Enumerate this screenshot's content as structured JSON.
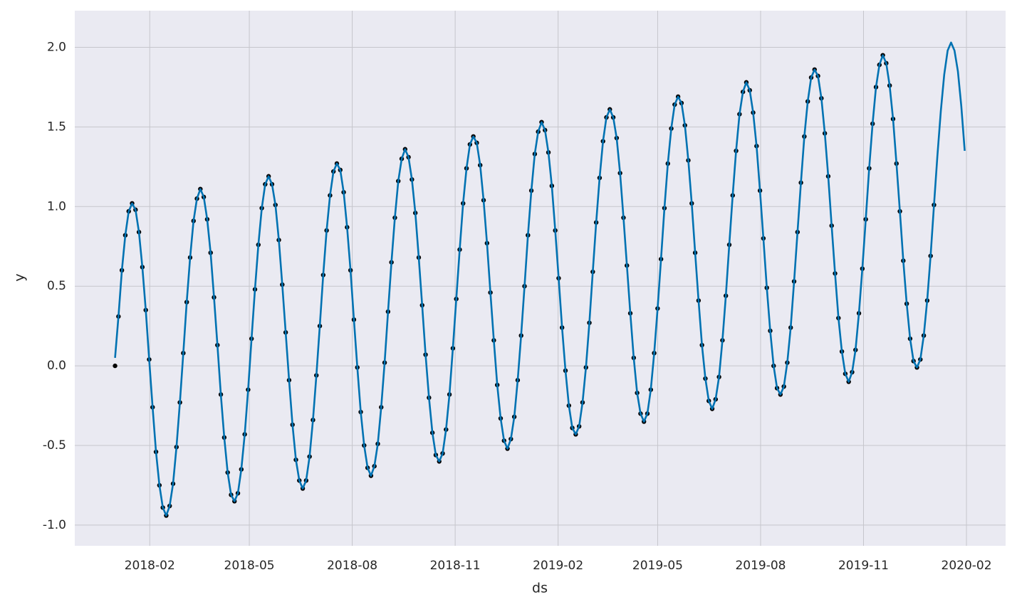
{
  "chart_data": {
    "type": "line",
    "xlabel": "ds",
    "ylabel": "y",
    "grid": true,
    "xlim": [
      -36,
      796
    ],
    "ylim": [
      -1.13,
      2.23
    ],
    "xticks": [
      {
        "value": 31,
        "label": "2018-02"
      },
      {
        "value": 120,
        "label": "2018-05"
      },
      {
        "value": 212,
        "label": "2018-08"
      },
      {
        "value": 304,
        "label": "2018-11"
      },
      {
        "value": 396,
        "label": "2019-02"
      },
      {
        "value": 485,
        "label": "2019-05"
      },
      {
        "value": 577,
        "label": "2019-08"
      },
      {
        "value": 669,
        "label": "2019-11"
      },
      {
        "value": 761,
        "label": "2020-02"
      }
    ],
    "yticks": [
      {
        "value": -1,
        "label": "-1.0"
      },
      -0.5,
      {
        "value": 0,
        "label": "0.0"
      },
      0.5,
      {
        "value": 1,
        "label": "1.0"
      },
      1.5,
      {
        "value": 2,
        "label": "2.0"
      }
    ],
    "x": [
      0,
      3.05,
      6.1,
      9.15,
      12.2,
      15.25,
      18.3,
      21.35,
      24.4,
      27.45,
      30.5,
      33.55,
      36.6,
      39.65,
      42.7,
      45.75,
      48.8,
      51.85,
      54.9,
      57.95,
      61,
      64.05,
      67.1,
      70.15,
      73.2,
      76.25,
      79.3,
      82.35,
      85.4,
      88.45,
      91.5,
      94.55,
      97.6,
      100.65,
      103.7,
      106.75,
      109.8,
      112.85,
      115.9,
      118.95,
      122,
      125.05,
      128.1,
      131.15,
      134.2,
      137.25,
      140.3,
      143.35,
      146.4,
      149.45,
      152.5,
      155.55,
      158.6,
      161.65,
      164.7,
      167.75,
      170.8,
      173.85,
      176.9,
      179.95,
      183,
      186.05,
      189.1,
      192.15,
      195.2,
      198.25,
      201.3,
      204.35,
      207.4,
      210.45,
      213.5,
      216.55,
      219.6,
      222.65,
      225.7,
      228.75,
      231.8,
      234.85,
      237.9,
      240.95,
      244,
      247.05,
      250.1,
      253.15,
      256.2,
      259.25,
      262.3,
      265.35,
      268.4,
      271.45,
      274.5,
      277.55,
      280.6,
      283.65,
      286.7,
      289.75,
      292.8,
      295.85,
      298.9,
      301.95,
      305,
      308.05,
      311.1,
      314.15,
      317.2,
      320.25,
      323.3,
      326.35,
      329.4,
      332.45,
      335.5,
      338.55,
      341.6,
      344.65,
      347.7,
      350.75,
      353.8,
      356.85,
      359.9,
      362.95,
      366,
      369.05,
      372.1,
      375.15,
      378.2,
      381.25,
      384.3,
      387.35,
      390.4,
      393.45,
      396.5,
      399.55,
      402.6,
      405.65,
      408.7,
      411.75,
      414.8,
      417.85,
      420.9,
      423.95,
      427,
      430.05,
      433.1,
      436.15,
      439.2,
      442.25,
      445.3,
      448.35,
      451.4,
      454.45,
      457.5,
      460.55,
      463.6,
      466.65,
      469.7,
      472.75,
      475.8,
      478.85,
      481.9,
      484.95,
      488,
      491.05,
      494.1,
      497.15,
      500.2,
      503.25,
      506.3,
      509.35,
      512.4,
      515.45,
      518.5,
      521.55,
      524.6,
      527.65,
      530.7,
      533.75,
      536.8,
      539.85,
      542.9,
      545.95,
      549,
      552.05,
      555.1,
      558.15,
      561.2,
      564.25,
      567.3,
      570.35,
      573.4,
      576.45,
      579.5,
      582.55,
      585.6,
      588.65,
      591.7,
      594.75,
      597.8,
      600.85,
      603.9,
      606.95,
      610,
      613.05,
      616.1,
      619.15,
      622.2,
      625.25,
      628.3,
      631.35,
      634.4,
      637.45,
      640.5,
      643.55,
      646.6,
      649.65,
      652.7,
      655.75,
      658.8,
      661.85,
      664.9,
      667.95,
      671,
      674.05,
      677.1,
      680.15,
      683.2,
      686.25,
      689.3,
      692.35,
      695.4,
      698.45,
      701.5,
      704.55,
      707.6,
      710.65,
      713.7,
      716.75,
      719.8,
      722.85,
      725.9,
      728.95,
      732,
      735.05,
      738.1,
      741.15,
      744.2,
      747.25,
      750.3,
      753.35,
      756.4,
      759.45
    ],
    "series": [
      {
        "type": "scatter",
        "color": "#000000",
        "values": [
          0,
          0.31,
          0.6,
          0.82,
          0.97,
          1.02,
          0.98,
          0.84,
          0.62,
          0.35,
          0.04,
          -0.26,
          -0.54,
          -0.75,
          -0.89,
          -0.94,
          -0.88,
          -0.74,
          -0.51,
          -0.23,
          0.08,
          0.4,
          0.68,
          0.91,
          1.05,
          1.11,
          1.06,
          0.92,
          0.71,
          0.43,
          0.13,
          -0.18,
          -0.45,
          -0.67,
          -0.81,
          -0.85,
          -0.8,
          -0.65,
          -0.43,
          -0.15,
          0.17,
          0.48,
          0.76,
          0.99,
          1.14,
          1.19,
          1.14,
          1.01,
          0.79,
          0.51,
          0.21,
          -0.09,
          -0.37,
          -0.59,
          -0.72,
          -0.77,
          -0.72,
          -0.57,
          -0.34,
          -0.06,
          0.25,
          0.57,
          0.85,
          1.07,
          1.22,
          1.27,
          1.23,
          1.09,
          0.87,
          0.6,
          0.29,
          -0.01,
          -0.29,
          -0.5,
          -0.64,
          -0.69,
          -0.63,
          -0.49,
          -0.26,
          0.02,
          0.34,
          0.65,
          0.93,
          1.16,
          1.3,
          1.36,
          1.31,
          1.17,
          0.96,
          0.68,
          0.38,
          0.07,
          -0.2,
          -0.42,
          -0.56,
          -0.6,
          -0.55,
          -0.4,
          -0.18,
          0.11,
          0.42,
          0.73,
          1.02,
          1.24,
          1.39,
          1.44,
          1.4,
          1.26,
          1.04,
          0.77,
          0.46,
          0.16,
          -0.12,
          -0.33,
          -0.47,
          -0.52,
          -0.46,
          -0.32,
          -0.09,
          0.19,
          0.5,
          0.82,
          1.1,
          1.33,
          1.47,
          1.53,
          1.48,
          1.34,
          1.13,
          0.85,
          0.55,
          0.24,
          -0.03,
          -0.25,
          -0.39,
          -0.43,
          -0.38,
          -0.23,
          -0.01,
          0.27,
          0.59,
          0.9,
          1.18,
          1.41,
          1.56,
          1.61,
          1.56,
          1.43,
          1.21,
          0.93,
          0.63,
          0.33,
          0.05,
          -0.17,
          -0.3,
          -0.35,
          -0.3,
          -0.15,
          0.08,
          0.36,
          0.67,
          0.99,
          1.27,
          1.49,
          1.64,
          1.69,
          1.65,
          1.51,
          1.29,
          1.02,
          0.71,
          0.41,
          0.13,
          -0.08,
          -0.22,
          -0.27,
          -0.21,
          -0.07,
          0.16,
          0.44,
          0.76,
          1.07,
          1.35,
          1.58,
          1.72,
          1.78,
          1.73,
          1.59,
          1.38,
          1.1,
          0.8,
          0.49,
          0.22,
          0,
          -0.14,
          -0.18,
          -0.13,
          0.02,
          0.24,
          0.53,
          0.84,
          1.15,
          1.44,
          1.66,
          1.81,
          1.86,
          1.82,
          1.68,
          1.46,
          1.19,
          0.88,
          0.58,
          0.3,
          0.09,
          -0.05,
          -0.1,
          -0.04,
          0.1,
          0.33,
          0.61,
          0.92,
          1.24,
          1.52,
          1.75,
          1.89,
          1.95,
          1.9,
          1.76,
          1.55,
          1.27,
          0.97,
          0.66,
          0.39,
          0.17,
          0.03,
          -0.01,
          0.04,
          0.19,
          0.41,
          0.69,
          1.01,
          null,
          null,
          null,
          null,
          null,
          null,
          null,
          null,
          null
        ]
      },
      {
        "type": "line",
        "color": "#0072b2",
        "values": [
          0.05,
          0.31,
          0.6,
          0.82,
          0.97,
          1.02,
          0.98,
          0.84,
          0.62,
          0.35,
          0.04,
          -0.26,
          -0.54,
          -0.75,
          -0.89,
          -0.94,
          -0.88,
          -0.74,
          -0.51,
          -0.23,
          0.08,
          0.4,
          0.68,
          0.91,
          1.05,
          1.11,
          1.06,
          0.92,
          0.71,
          0.43,
          0.13,
          -0.18,
          -0.45,
          -0.67,
          -0.81,
          -0.85,
          -0.8,
          -0.65,
          -0.43,
          -0.15,
          0.17,
          0.48,
          0.76,
          0.99,
          1.14,
          1.19,
          1.14,
          1.01,
          0.79,
          0.51,
          0.21,
          -0.09,
          -0.37,
          -0.59,
          -0.72,
          -0.77,
          -0.72,
          -0.57,
          -0.34,
          -0.06,
          0.25,
          0.57,
          0.85,
          1.07,
          1.22,
          1.27,
          1.23,
          1.09,
          0.87,
          0.6,
          0.29,
          -0.01,
          -0.29,
          -0.5,
          -0.64,
          -0.69,
          -0.63,
          -0.49,
          -0.26,
          0.02,
          0.34,
          0.65,
          0.93,
          1.16,
          1.3,
          1.36,
          1.31,
          1.17,
          0.96,
          0.68,
          0.38,
          0.07,
          -0.2,
          -0.42,
          -0.56,
          -0.6,
          -0.55,
          -0.4,
          -0.18,
          0.11,
          0.42,
          0.73,
          1.02,
          1.24,
          1.39,
          1.44,
          1.4,
          1.26,
          1.04,
          0.77,
          0.46,
          0.16,
          -0.12,
          -0.33,
          -0.47,
          -0.52,
          -0.46,
          -0.32,
          -0.09,
          0.19,
          0.5,
          0.82,
          1.1,
          1.33,
          1.47,
          1.53,
          1.48,
          1.34,
          1.13,
          0.85,
          0.55,
          0.24,
          -0.03,
          -0.25,
          -0.39,
          -0.43,
          -0.38,
          -0.23,
          -0.01,
          0.27,
          0.59,
          0.9,
          1.18,
          1.41,
          1.56,
          1.61,
          1.56,
          1.43,
          1.21,
          0.93,
          0.63,
          0.33,
          0.05,
          -0.17,
          -0.3,
          -0.35,
          -0.3,
          -0.15,
          0.08,
          0.36,
          0.67,
          0.99,
          1.27,
          1.49,
          1.64,
          1.69,
          1.65,
          1.51,
          1.29,
          1.02,
          0.71,
          0.41,
          0.13,
          -0.08,
          -0.22,
          -0.27,
          -0.21,
          -0.07,
          0.16,
          0.44,
          0.76,
          1.07,
          1.35,
          1.58,
          1.72,
          1.78,
          1.73,
          1.59,
          1.38,
          1.1,
          0.8,
          0.49,
          0.22,
          0,
          -0.14,
          -0.18,
          -0.13,
          0.02,
          0.24,
          0.53,
          0.84,
          1.15,
          1.44,
          1.66,
          1.81,
          1.86,
          1.82,
          1.68,
          1.46,
          1.19,
          0.88,
          0.58,
          0.3,
          0.09,
          -0.05,
          -0.1,
          -0.04,
          0.1,
          0.33,
          0.61,
          0.92,
          1.24,
          1.52,
          1.75,
          1.89,
          1.95,
          1.9,
          1.76,
          1.55,
          1.27,
          0.97,
          0.66,
          0.39,
          0.17,
          0.03,
          -0.01,
          0.04,
          0.19,
          0.41,
          0.69,
          1.01,
          1.32,
          1.6,
          1.83,
          1.98,
          2.03,
          1.98,
          1.85,
          1.63,
          1.35
        ]
      }
    ]
  }
}
